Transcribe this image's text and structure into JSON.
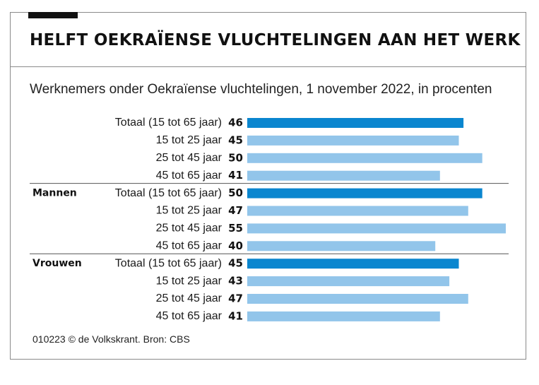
{
  "title": "HELFT OEKRAÏENSE VLUCHTELINGEN AAN HET WERK",
  "subtitle": "Werknemers onder Oekraïense vluchtelingen, 1 november 2022, in procenten",
  "footer": "010223 © de Volkskrant. Bron: CBS",
  "colors": {
    "total": "#0a86cf",
    "age": "#92c5ea",
    "text": "#1a1a1a",
    "rule": "#555555"
  },
  "chart_data": {
    "type": "bar",
    "orientation": "horizontal",
    "title": "HELFT OEKRAÏENSE VLUCHTELINGEN AAN HET WERK",
    "subtitle": "Werknemers onder Oekraïense vluchtelingen, 1 november 2022, in procenten",
    "xlim": [
      0,
      55
    ],
    "groups": [
      {
        "name": "",
        "categories": [
          "Totaal (15 tot 65 jaar)",
          "15 tot 25 jaar",
          "25 tot 45 jaar",
          "45 tot 65 jaar"
        ],
        "values": [
          46,
          45,
          50,
          41
        ]
      },
      {
        "name": "Mannen",
        "categories": [
          "Totaal (15 tot 65 jaar)",
          "15 tot 25 jaar",
          "25 tot 45 jaar",
          "45 tot 65 jaar"
        ],
        "values": [
          50,
          47,
          55,
          40
        ]
      },
      {
        "name": "Vrouwen",
        "categories": [
          "Totaal (15 tot 65 jaar)",
          "15 tot 25 jaar",
          "25 tot 45 jaar",
          "45 tot 65 jaar"
        ],
        "values": [
          45,
          43,
          47,
          41
        ]
      }
    ]
  }
}
